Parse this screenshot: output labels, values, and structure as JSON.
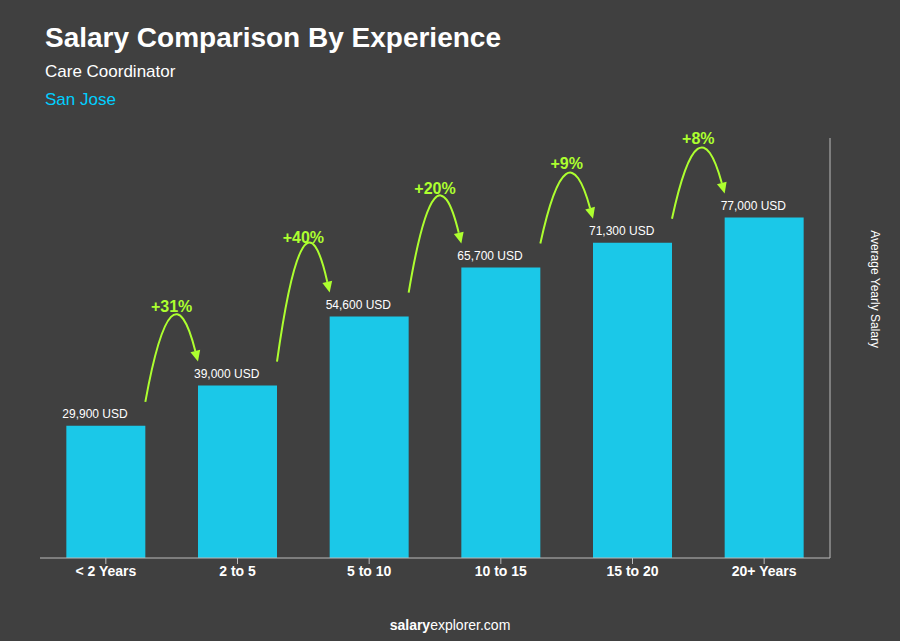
{
  "chart_data": {
    "type": "bar",
    "title": "Salary Comparison By Experience",
    "subtitle": [
      "Care Coordinator",
      "San Jose"
    ],
    "categories": [
      "< 2 Years",
      "2 to 5",
      "5 to 10",
      "10 to 15",
      "15 to 20",
      "20+ Years"
    ],
    "values": [
      29900,
      39000,
      54600,
      65700,
      71300,
      77000
    ],
    "value_labels": [
      "29,900 USD",
      "39,000 USD",
      "54,600 USD",
      "65,700 USD",
      "71,300 USD",
      "77,000 USD"
    ],
    "data_labels": true,
    "annotations": [
      "+31%",
      "+40%",
      "+20%",
      "+9%",
      "+8%"
    ],
    "ylabel": "Average Yearly Salary",
    "footer": [
      "salary",
      "explorer.com"
    ],
    "color": "#1BC8E8",
    "ylim": [
      0,
      95000
    ],
    "tick_labels": "x"
  }
}
